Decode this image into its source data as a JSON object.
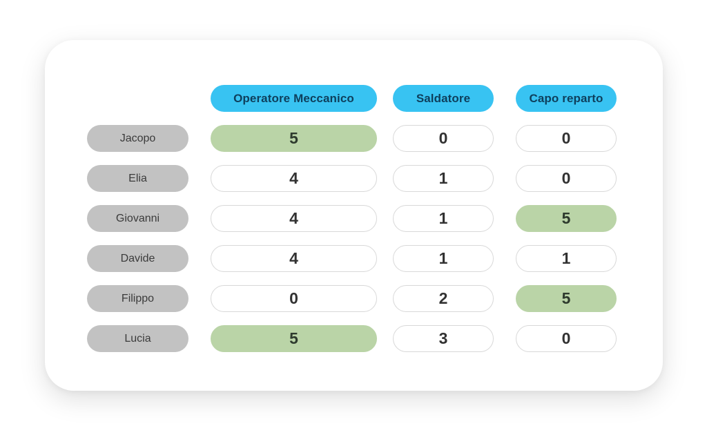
{
  "table": {
    "columns": [
      {
        "label": "Operatore Meccanico"
      },
      {
        "label": "Saldatore"
      },
      {
        "label": "Capo reparto"
      }
    ],
    "rows": [
      {
        "name": "Jacopo",
        "values": [
          5,
          0,
          0
        ],
        "highlight": [
          true,
          false,
          false
        ]
      },
      {
        "name": "Elia",
        "values": [
          4,
          1,
          0
        ],
        "highlight": [
          false,
          false,
          false
        ]
      },
      {
        "name": "Giovanni",
        "values": [
          4,
          1,
          5
        ],
        "highlight": [
          false,
          false,
          true
        ]
      },
      {
        "name": "Davide",
        "values": [
          4,
          1,
          1
        ],
        "highlight": [
          false,
          false,
          false
        ]
      },
      {
        "name": "Filippo",
        "values": [
          0,
          2,
          5
        ],
        "highlight": [
          false,
          false,
          true
        ]
      },
      {
        "name": "Lucia",
        "values": [
          5,
          3,
          0
        ],
        "highlight": [
          true,
          false,
          false
        ]
      }
    ]
  },
  "colors": {
    "card_bg": "#FFFFFF",
    "header_bg": "#38C3F2",
    "header_text": "#0E3F5C",
    "label_bg": "#C2C2C2",
    "label_text": "#3B3B3B",
    "cell_border": "#D8D8D8",
    "cell_text": "#323232",
    "highlight_bg": "#BAD4A7",
    "highlight_text": "#2E3B2E"
  }
}
